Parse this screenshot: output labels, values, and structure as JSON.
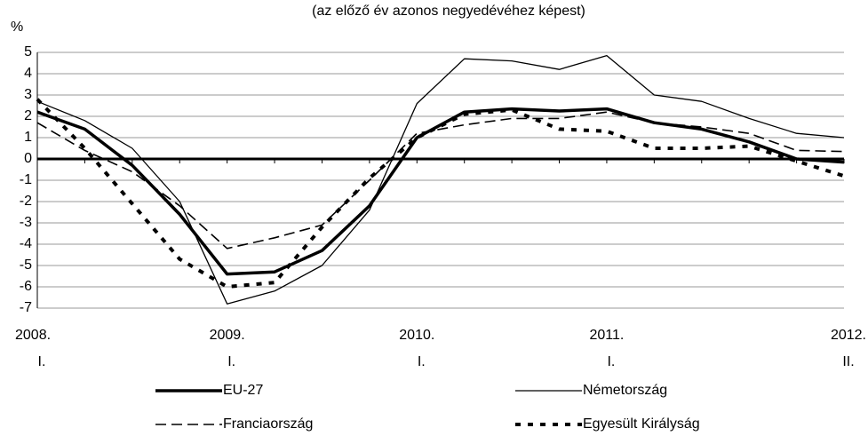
{
  "chart_data": {
    "type": "line",
    "title": "(az előző év azonos negyedévéhez képest)",
    "y_label": "%",
    "categories": [
      "2008.",
      null,
      null,
      null,
      "2009.",
      null,
      null,
      null,
      "2010.",
      null,
      null,
      null,
      "2011.",
      null,
      null,
      null,
      null,
      "2012."
    ],
    "sublabels": [
      "I.",
      null,
      null,
      null,
      "I.",
      null,
      null,
      null,
      "I.",
      null,
      null,
      null,
      "I.",
      null,
      null,
      null,
      null,
      "II."
    ],
    "ylim": [
      -7,
      5
    ],
    "yticks": [
      5,
      4,
      3,
      2,
      1,
      0,
      -1,
      -2,
      -3,
      -4,
      -5,
      -6,
      -7
    ],
    "grid": true,
    "legend": "bottom",
    "series": [
      {
        "name": "EU-27",
        "color": "#000000",
        "style": "thick",
        "values": [
          2.2,
          1.4,
          -0.3,
          -2.6,
          -5.4,
          -5.3,
          -4.3,
          -2.2,
          1.0,
          2.2,
          2.35,
          2.25,
          2.35,
          1.7,
          1.4,
          0.8,
          0.0,
          -0.15
        ]
      },
      {
        "name": "Németország",
        "color": "#000000",
        "style": "thin",
        "values": [
          2.7,
          1.8,
          0.5,
          -2.0,
          -6.8,
          -6.2,
          -5.0,
          -2.4,
          2.6,
          4.7,
          4.6,
          4.2,
          4.85,
          3.0,
          2.7,
          1.9,
          1.2,
          1.0
        ]
      },
      {
        "name": "Franciaország",
        "color": "#000000",
        "style": "dashed",
        "values": [
          1.7,
          0.4,
          -0.6,
          -2.2,
          -4.2,
          -3.7,
          -3.1,
          -1.0,
          1.2,
          1.6,
          1.9,
          1.9,
          2.2,
          1.7,
          1.5,
          1.2,
          0.4,
          0.35
        ]
      },
      {
        "name": "Egyesült Királyság",
        "color": "#000000",
        "style": "dotted",
        "values": [
          2.8,
          0.5,
          -2.1,
          -4.7,
          -6.0,
          -5.8,
          -3.2,
          -0.9,
          1.0,
          2.1,
          2.3,
          1.4,
          1.3,
          0.5,
          0.5,
          0.6,
          -0.1,
          -0.8
        ]
      }
    ]
  }
}
